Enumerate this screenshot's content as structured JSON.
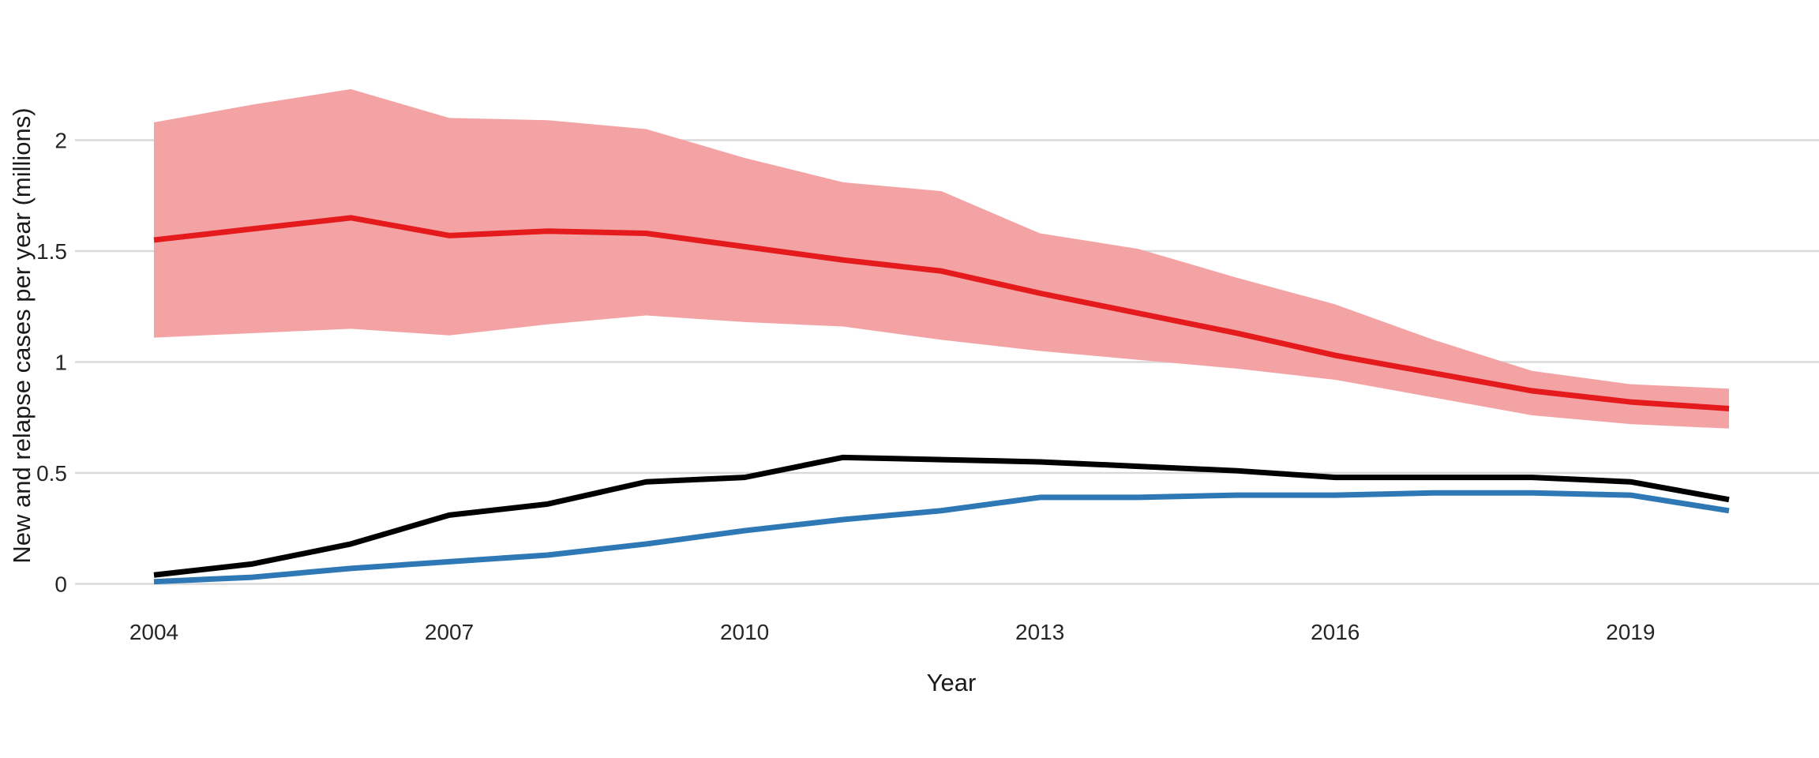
{
  "figure": {
    "background_color": "#ffffff",
    "text_color": "#1a1a1a"
  },
  "chart_data": {
    "type": "line",
    "title": "",
    "xlabel": "Year",
    "ylabel": "New and relapse cases per year (millions)",
    "x": [
      2004,
      2005,
      2006,
      2007,
      2008,
      2009,
      2010,
      2011,
      2012,
      2013,
      2014,
      2015,
      2016,
      2017,
      2018,
      2019,
      2020
    ],
    "series": [
      {
        "name": "red-line-with-uncertainty-band",
        "color": "#e41a1c",
        "values": [
          1.55,
          1.6,
          1.65,
          1.57,
          1.59,
          1.58,
          1.52,
          1.46,
          1.41,
          1.31,
          1.22,
          1.13,
          1.03,
          0.95,
          0.87,
          0.82,
          0.79
        ],
        "band_color": "#f4a3a4",
        "band_upper": [
          2.08,
          2.16,
          2.23,
          2.1,
          2.09,
          2.05,
          1.92,
          1.81,
          1.77,
          1.58,
          1.51,
          1.38,
          1.26,
          1.1,
          0.96,
          0.9,
          0.88
        ],
        "band_lower": [
          1.11,
          1.13,
          1.15,
          1.12,
          1.17,
          1.21,
          1.18,
          1.16,
          1.1,
          1.05,
          1.01,
          0.97,
          0.92,
          0.84,
          0.76,
          0.72,
          0.7
        ]
      },
      {
        "name": "black-line",
        "color": "#000000",
        "values": [
          0.04,
          0.09,
          0.18,
          0.31,
          0.36,
          0.46,
          0.48,
          0.57,
          0.56,
          0.55,
          0.53,
          0.51,
          0.48,
          0.48,
          0.48,
          0.46,
          0.38
        ]
      },
      {
        "name": "blue-line",
        "color": "#2e79b5",
        "values": [
          0.01,
          0.03,
          0.07,
          0.1,
          0.13,
          0.18,
          0.24,
          0.29,
          0.33,
          0.39,
          0.39,
          0.4,
          0.4,
          0.41,
          0.41,
          0.4,
          0.33
        ]
      }
    ],
    "x_tick_labels": [
      "2004",
      "2007",
      "2010",
      "2013",
      "2016",
      "2019"
    ],
    "x_tick_values": [
      2004,
      2007,
      2010,
      2013,
      2016,
      2019
    ],
    "y_tick_labels": [
      "0",
      "0.5",
      "1",
      "1.5",
      "2"
    ],
    "y_tick_values": [
      0,
      0.5,
      1,
      1.5,
      2
    ],
    "xlim": [
      2003.2,
      2020.9
    ],
    "ylim": [
      -0.11,
      2.34
    ],
    "grid": "horizontal-only",
    "gridline_color": "#d9d9d9",
    "legend": "none"
  }
}
